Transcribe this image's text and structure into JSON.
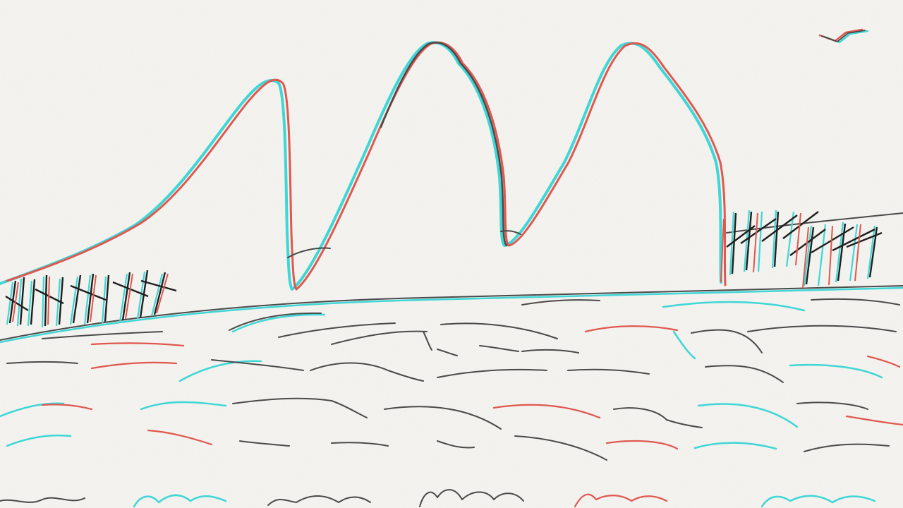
{
  "scene": {
    "description_visible_text": "",
    "palette": {
      "paper": "#f4f3ef",
      "ink": "#4a4a4a",
      "red_fringe": "#e0574f",
      "cyan_fringe": "#3fd6d6",
      "grass": "#1f1f1f"
    },
    "elements": {
      "peaks": 3,
      "grass_tufts": 3,
      "bird": 1,
      "water_strokes": "many"
    }
  }
}
